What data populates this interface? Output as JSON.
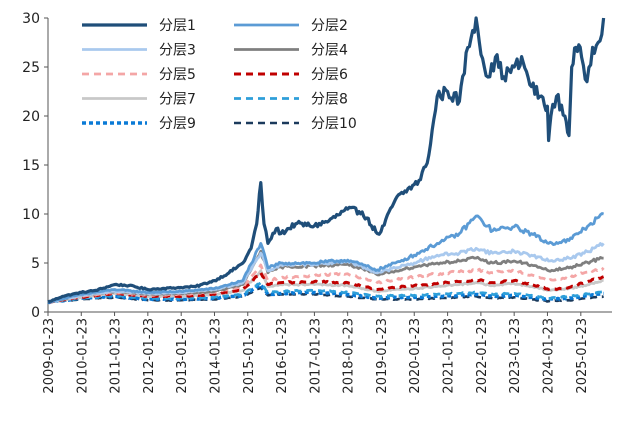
{
  "chart_data": {
    "type": "line",
    "title": "",
    "xlabel": "",
    "ylabel": "",
    "ylim": [
      0,
      30
    ],
    "yticks": [
      0,
      5,
      10,
      15,
      20,
      25,
      30
    ],
    "xrange": [
      "2009-01-23",
      "2025-12-31"
    ],
    "xticks": [
      "2009-01-23",
      "2010-01-23",
      "2011-01-23",
      "2012-01-23",
      "2013-01-23",
      "2014-01-23",
      "2015-01-23",
      "2016-01-23",
      "2017-01-23",
      "2018-01-23",
      "2019-01-23",
      "2020-01-23",
      "2021-01-23",
      "2022-01-23",
      "2023-01-23",
      "2024-01-23",
      "2025-01-23"
    ],
    "grid": false,
    "legend_position": "top-left",
    "legend_columns": 2,
    "series": [
      {
        "name": "分层1",
        "color": "#1f4e79",
        "dash": "solid",
        "width": 3.2,
        "x": [
          "2009-01-23",
          "2009-07-01",
          "2010-01-23",
          "2010-07-01",
          "2011-01-23",
          "2011-07-01",
          "2012-01-23",
          "2012-07-01",
          "2013-01-23",
          "2013-07-01",
          "2014-01-23",
          "2014-07-01",
          "2014-12-01",
          "2015-03-01",
          "2015-05-01",
          "2015-06-15",
          "2015-07-20",
          "2015-09-01",
          "2015-12-01",
          "2016-01-23",
          "2016-07-01",
          "2017-01-23",
          "2017-07-01",
          "2018-01-23",
          "2018-07-01",
          "2018-12-15",
          "2019-01-23",
          "2019-07-01",
          "2020-01-23",
          "2020-04-01",
          "2020-07-01",
          "2020-10-01",
          "2021-01-23",
          "2021-06-01",
          "2021-09-01",
          "2021-12-01",
          "2022-03-01",
          "2022-05-01",
          "2022-07-01",
          "2022-10-01",
          "2023-01-23",
          "2023-05-01",
          "2023-08-01",
          "2023-11-01",
          "2024-01-23",
          "2024-02-05",
          "2024-03-01",
          "2024-05-01",
          "2024-08-01",
          "2024-09-15",
          "2024-10-15",
          "2024-12-01",
          "2025-02-01",
          "2025-04-01",
          "2025-06-01",
          "2025-08-01",
          "2025-09-30"
        ],
        "values": [
          1.0,
          1.6,
          2.0,
          2.2,
          2.8,
          2.7,
          2.3,
          2.4,
          2.5,
          2.6,
          3.2,
          4.0,
          5.0,
          6.5,
          9.0,
          13.2,
          9.0,
          7.0,
          8.5,
          8.0,
          9.0,
          8.8,
          9.3,
          10.5,
          10.2,
          8.0,
          8.2,
          11.5,
          13.0,
          13.5,
          16.0,
          22.0,
          22.5,
          21.5,
          27.0,
          30.0,
          25.0,
          24.0,
          26.0,
          24.0,
          25.0,
          25.5,
          23.0,
          22.0,
          21.0,
          17.5,
          20.0,
          22.0,
          20.0,
          18.0,
          25.0,
          27.0,
          26.0,
          23.5,
          27.0,
          27.5,
          30.0
        ]
      },
      {
        "name": "分层2",
        "color": "#5b9bd5",
        "dash": "solid",
        "width": 2.8,
        "x": [
          "2009-01-23",
          "2010-01-23",
          "2011-01-23",
          "2012-01-23",
          "2013-01-23",
          "2014-01-23",
          "2014-12-01",
          "2015-06-15",
          "2015-09-01",
          "2016-01-23",
          "2017-01-23",
          "2018-01-23",
          "2018-12-15",
          "2019-07-01",
          "2020-01-23",
          "2020-10-01",
          "2021-06-01",
          "2021-12-01",
          "2022-06-01",
          "2023-01-23",
          "2023-08-01",
          "2024-02-05",
          "2024-09-15",
          "2025-03-01",
          "2025-09-30"
        ],
        "values": [
          1.0,
          1.8,
          2.3,
          2.0,
          2.1,
          2.4,
          3.2,
          7.0,
          4.5,
          5.0,
          5.0,
          5.3,
          4.3,
          5.0,
          5.8,
          7.0,
          8.0,
          9.8,
          8.3,
          8.7,
          8.0,
          7.0,
          7.3,
          8.5,
          10.0
        ]
      },
      {
        "name": "分层3",
        "color": "#a9c9ee",
        "dash": "solid",
        "width": 2.8,
        "x": [
          "2009-01-23",
          "2010-01-23",
          "2011-01-23",
          "2012-01-23",
          "2013-01-23",
          "2014-01-23",
          "2014-12-01",
          "2015-06-15",
          "2015-09-01",
          "2016-01-23",
          "2017-01-23",
          "2018-01-23",
          "2018-12-15",
          "2019-07-01",
          "2020-01-23",
          "2020-10-01",
          "2021-06-01",
          "2021-12-01",
          "2022-06-01",
          "2023-01-23",
          "2023-08-01",
          "2024-02-05",
          "2024-09-15",
          "2025-03-01",
          "2025-09-30"
        ],
        "values": [
          1.0,
          1.7,
          2.1,
          1.9,
          2.0,
          2.3,
          3.0,
          6.0,
          4.2,
          4.8,
          4.9,
          5.2,
          4.0,
          4.5,
          5.0,
          5.8,
          6.0,
          6.5,
          6.0,
          6.2,
          5.8,
          5.2,
          5.5,
          6.0,
          7.0
        ]
      },
      {
        "name": "分层4",
        "color": "#7f7f7f",
        "dash": "solid",
        "width": 2.8,
        "x": [
          "2009-01-23",
          "2010-01-23",
          "2011-01-23",
          "2012-01-23",
          "2013-01-23",
          "2014-01-23",
          "2014-12-01",
          "2015-06-15",
          "2015-09-01",
          "2016-01-23",
          "2017-01-23",
          "2018-01-23",
          "2018-12-15",
          "2019-07-01",
          "2020-01-23",
          "2020-10-01",
          "2021-06-01",
          "2021-12-01",
          "2022-06-01",
          "2023-01-23",
          "2023-08-01",
          "2024-02-05",
          "2024-09-15",
          "2025-03-01",
          "2025-09-30"
        ],
        "values": [
          1.0,
          1.7,
          2.1,
          1.8,
          1.9,
          2.1,
          2.8,
          6.2,
          4.0,
          4.6,
          4.7,
          4.9,
          3.8,
          4.2,
          4.6,
          5.0,
          5.2,
          5.5,
          5.0,
          5.2,
          4.8,
          4.2,
          4.5,
          5.0,
          5.5
        ]
      },
      {
        "name": "分层5",
        "color": "#f4a6a6",
        "dash": "dashed",
        "width": 2.8,
        "x": [
          "2009-01-23",
          "2010-01-23",
          "2011-01-23",
          "2012-01-23",
          "2013-01-23",
          "2014-01-23",
          "2014-12-01",
          "2015-06-15",
          "2015-09-01",
          "2016-01-23",
          "2017-01-23",
          "2018-01-23",
          "2018-12-15",
          "2019-07-01",
          "2020-01-23",
          "2020-10-01",
          "2021-06-01",
          "2021-12-01",
          "2022-06-01",
          "2023-01-23",
          "2023-08-01",
          "2024-02-05",
          "2024-09-15",
          "2025-03-01",
          "2025-09-30"
        ],
        "values": [
          1.0,
          1.6,
          2.0,
          1.7,
          1.8,
          2.0,
          2.6,
          4.8,
          3.2,
          3.5,
          3.7,
          3.9,
          3.0,
          3.3,
          3.6,
          3.9,
          4.1,
          4.3,
          4.0,
          4.2,
          3.8,
          3.2,
          3.5,
          4.0,
          4.5
        ]
      },
      {
        "name": "分层6",
        "color": "#c00000",
        "dash": "dashed",
        "width": 3.0,
        "x": [
          "2009-01-23",
          "2010-01-23",
          "2011-01-23",
          "2012-01-23",
          "2013-01-23",
          "2014-01-23",
          "2014-12-01",
          "2015-06-15",
          "2015-09-01",
          "2016-01-23",
          "2017-01-23",
          "2018-01-23",
          "2018-12-15",
          "2019-07-01",
          "2020-01-23",
          "2020-10-01",
          "2021-06-01",
          "2021-12-01",
          "2022-06-01",
          "2023-01-23",
          "2023-08-01",
          "2024-02-05",
          "2024-09-15",
          "2025-03-01",
          "2025-09-30"
        ],
        "values": [
          1.0,
          1.5,
          1.9,
          1.6,
          1.6,
          1.8,
          2.3,
          4.0,
          2.8,
          3.0,
          3.1,
          3.0,
          2.3,
          2.5,
          2.7,
          2.9,
          3.1,
          3.3,
          3.0,
          3.2,
          2.8,
          2.3,
          2.5,
          3.0,
          3.6
        ]
      },
      {
        "name": "分层7",
        "color": "#c8c8c8",
        "dash": "solid",
        "width": 2.8,
        "x": [
          "2009-01-23",
          "2010-01-23",
          "2011-01-23",
          "2012-01-23",
          "2013-01-23",
          "2014-01-23",
          "2014-12-01",
          "2015-06-15",
          "2015-09-01",
          "2016-01-23",
          "2017-01-23",
          "2018-01-23",
          "2018-12-15",
          "2019-07-01",
          "2020-01-23",
          "2020-10-01",
          "2021-06-01",
          "2021-12-01",
          "2022-06-01",
          "2023-01-23",
          "2023-08-01",
          "2024-02-05",
          "2024-09-15",
          "2025-03-01",
          "2025-09-30"
        ],
        "values": [
          1.0,
          1.5,
          1.9,
          1.6,
          1.6,
          1.8,
          2.2,
          4.2,
          2.6,
          2.8,
          2.8,
          2.7,
          2.1,
          2.3,
          2.4,
          2.6,
          2.8,
          3.0,
          2.7,
          2.9,
          2.6,
          2.2,
          2.4,
          2.7,
          3.2
        ]
      },
      {
        "name": "分层8",
        "color": "#2e9fd9",
        "dash": "dashed",
        "width": 2.8,
        "x": [
          "2009-01-23",
          "2010-01-23",
          "2011-01-23",
          "2012-01-23",
          "2013-01-23",
          "2014-01-23",
          "2014-12-01",
          "2015-06-15",
          "2015-09-01",
          "2016-01-23",
          "2017-01-23",
          "2018-01-23",
          "2018-12-15",
          "2019-07-01",
          "2020-01-23",
          "2020-10-01",
          "2021-06-01",
          "2021-12-01",
          "2022-06-01",
          "2023-01-23",
          "2023-08-01",
          "2024-02-05",
          "2024-09-15",
          "2025-03-01",
          "2025-09-30"
        ],
        "values": [
          1.0,
          1.4,
          1.7,
          1.4,
          1.4,
          1.5,
          1.8,
          3.0,
          2.0,
          2.1,
          2.2,
          2.0,
          1.6,
          1.7,
          1.7,
          1.8,
          1.9,
          2.0,
          1.8,
          1.9,
          1.7,
          1.4,
          1.6,
          1.8,
          2.1
        ]
      },
      {
        "name": "分层9",
        "color": "#0a7ad6",
        "dash": "dotted",
        "width": 3.4,
        "x": [
          "2009-01-23",
          "2010-01-23",
          "2011-01-23",
          "2012-01-23",
          "2013-01-23",
          "2014-01-23",
          "2014-12-01",
          "2015-06-15",
          "2015-09-01",
          "2016-01-23",
          "2017-01-23",
          "2018-01-23",
          "2018-12-15",
          "2019-07-01",
          "2020-01-23",
          "2020-10-01",
          "2021-06-01",
          "2021-12-01",
          "2022-06-01",
          "2023-01-23",
          "2023-08-01",
          "2024-02-05",
          "2024-09-15",
          "2025-03-01",
          "2025-09-30"
        ],
        "values": [
          1.0,
          1.4,
          1.6,
          1.3,
          1.3,
          1.4,
          1.7,
          2.8,
          1.8,
          1.9,
          2.0,
          1.8,
          1.4,
          1.5,
          1.5,
          1.6,
          1.7,
          1.8,
          1.6,
          1.7,
          1.5,
          1.3,
          1.4,
          1.6,
          1.9
        ]
      },
      {
        "name": "分层10",
        "color": "#1b3a5c",
        "dash": "dashed",
        "width": 2.6,
        "x": [
          "2009-01-23",
          "2010-01-23",
          "2011-01-23",
          "2012-01-23",
          "2013-01-23",
          "2014-01-23",
          "2014-12-01",
          "2015-06-15",
          "2015-09-01",
          "2016-01-23",
          "2017-01-23",
          "2018-01-23",
          "2018-12-15",
          "2019-07-01",
          "2020-01-23",
          "2020-10-01",
          "2021-06-01",
          "2021-12-01",
          "2022-06-01",
          "2023-01-23",
          "2023-08-01",
          "2024-02-05",
          "2024-09-15",
          "2025-03-01",
          "2025-09-30"
        ],
        "values": [
          1.0,
          1.3,
          1.5,
          1.2,
          1.2,
          1.3,
          1.6,
          2.5,
          1.7,
          1.8,
          1.8,
          1.6,
          1.3,
          1.3,
          1.3,
          1.4,
          1.5,
          1.6,
          1.4,
          1.5,
          1.3,
          1.1,
          1.2,
          1.4,
          1.6
        ]
      }
    ]
  }
}
